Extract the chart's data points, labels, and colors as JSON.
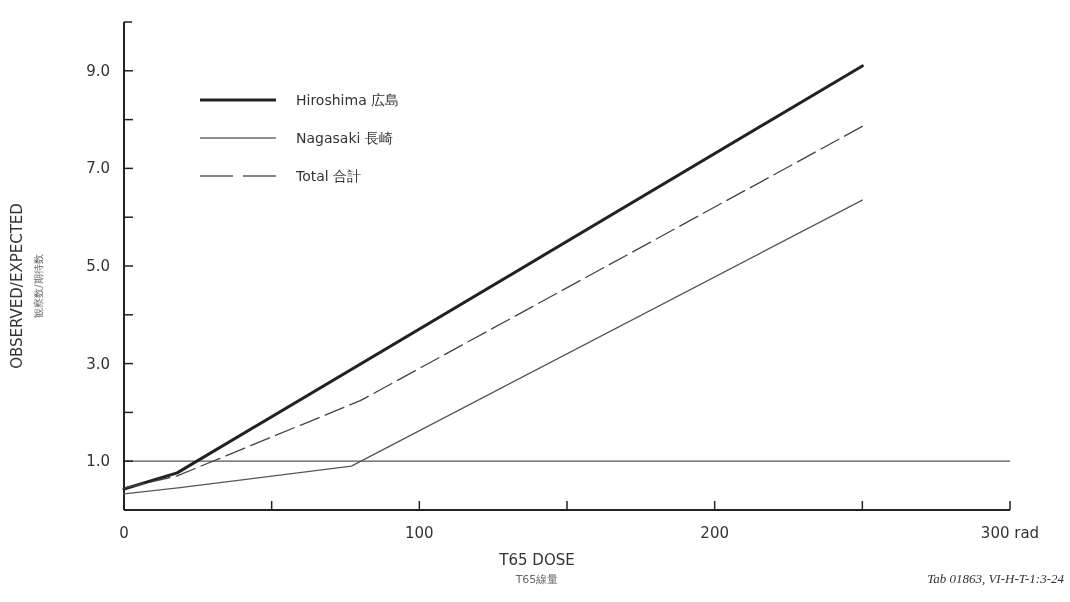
{
  "chart_data": {
    "type": "line",
    "xlabel": "T65 DOSE\nT65線量",
    "ylabel": "OBSERVED/EXPECTED\n観察数/期待数",
    "xlim": [
      0,
      300
    ],
    "xticks": [
      0,
      {
        "value": 50,
        "label": null
      },
      100,
      {
        "value": 150,
        "label": null
      },
      200,
      {
        "value": 250,
        "label": null
      },
      {
        "value": 300,
        "label": "300 rad"
      }
    ],
    "ylim": [
      0,
      10
    ],
    "yticks": [
      {
        "value": 1,
        "label": "1.0"
      },
      {
        "value": 2,
        "label": null
      },
      {
        "value": 3,
        "label": "3.0"
      },
      {
        "value": 4,
        "label": null
      },
      {
        "value": 5,
        "label": "5.0"
      },
      {
        "value": 6,
        "label": null
      },
      {
        "value": 7,
        "label": "7.0"
      },
      {
        "value": 8,
        "label": null
      },
      {
        "value": 9,
        "label": "9.0"
      }
    ],
    "grid": false,
    "legend": "top left",
    "marker": "none",
    "series": [
      {
        "name": "Hiroshima 広島",
        "color": "#222222",
        "x": [
          0,
          18,
          250
        ],
        "values": [
          0.43,
          0.76,
          9.1
        ],
        "line_style": "solid"
      },
      {
        "name": "Nagasaki 長崎",
        "color": "#555555",
        "x": [
          0,
          19,
          77,
          250
        ],
        "values": [
          0.33,
          0.46,
          0.9,
          6.35
        ],
        "line_style": "solid"
      },
      {
        "name": "Total 合計",
        "color": "#444444",
        "x": [
          0,
          18,
          80,
          250
        ],
        "values": [
          0.45,
          0.7,
          2.24,
          7.86
        ],
        "line_style": "dashed"
      }
    ],
    "ref_lines": [
      {
        "axis": "y",
        "value": 1,
        "color": "#555555",
        "line_style": "solid"
      }
    ],
    "annotations": [
      "Tab 01863, VI-H-T-1:3-24"
    ]
  }
}
